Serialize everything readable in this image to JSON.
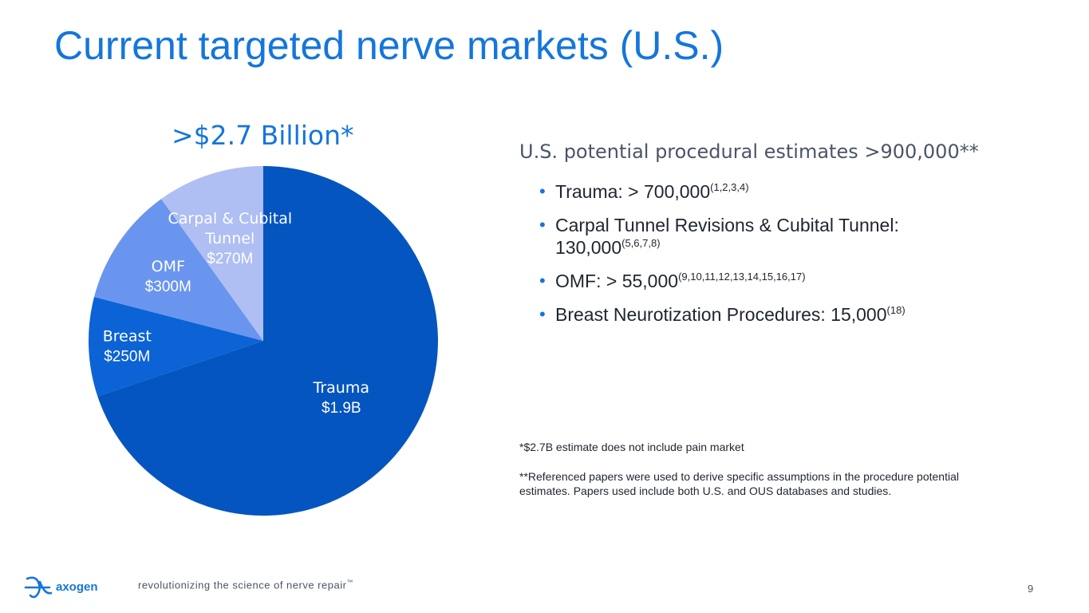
{
  "title": "Current targeted nerve markets (U.S.)",
  "chart_data": {
    "type": "pie",
    "title": ">$2.7 Billion*",
    "unit": "$M",
    "slices": [
      {
        "label": "Trauma",
        "value_text": "$1.9B",
        "value": 1900,
        "color": "#0455BF"
      },
      {
        "label": "Breast",
        "value_text": "$250M",
        "value": 250,
        "color": "#0B63D6"
      },
      {
        "label": "OMF",
        "value_text": "$300M",
        "value": 300,
        "color": "#6A95EE"
      },
      {
        "label": "Carpal & Cubital Tunnel",
        "value_text": "$270M",
        "value": 270,
        "color": "#AFBEF3"
      }
    ],
    "label_color": "#ffffff"
  },
  "estimates": {
    "heading": "U.S. potential procedural estimates >900,000**",
    "bullets": [
      {
        "text": "Trauma: > 700,000",
        "refs": "(1,2,3,4)"
      },
      {
        "text": "Carpal Tunnel Revisions & Cubital Tunnel: 130,000",
        "refs": "(5,6,7,8)"
      },
      {
        "text": "OMF: > 55,000",
        "refs": "(9,10,11,12,13,14,15,16,17)"
      },
      {
        "text": "Breast Neurotization Procedures: 15,000",
        "refs": "(18)"
      }
    ]
  },
  "footnotes": [
    "*$2.7B estimate does not include pain market",
    "**Referenced papers were used to derive specific assumptions in the procedure potential estimates. Papers used include both U.S. and OUS databases and studies."
  ],
  "footer": {
    "logo_text": "axogen",
    "tagline": "revolutionizing the science of nerve repair",
    "trademark": "™",
    "page_number": "9"
  },
  "colors": {
    "accent": "#1476DB"
  }
}
